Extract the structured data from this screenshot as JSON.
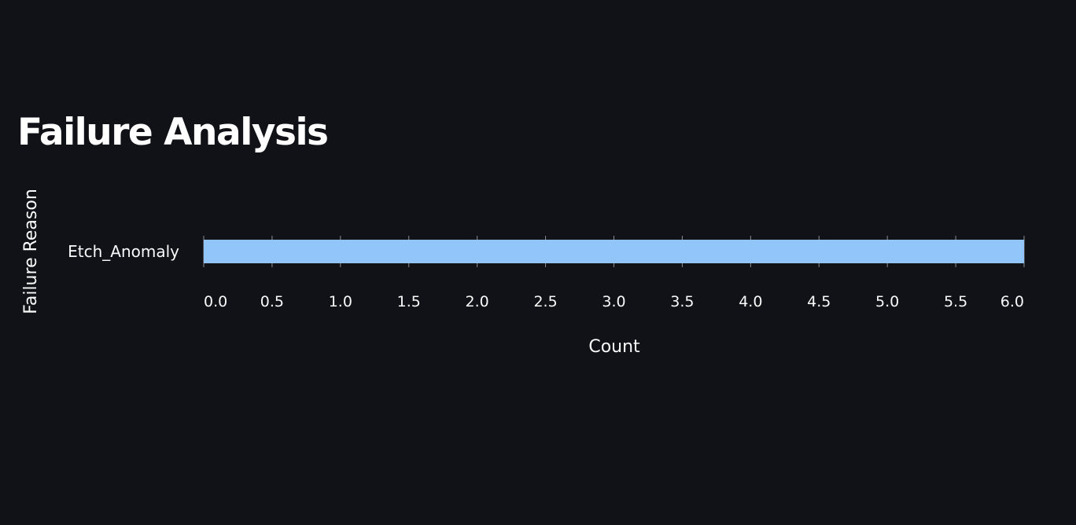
{
  "page": {
    "title": "Failure Analysis"
  },
  "colors": {
    "background": "#111217",
    "bar": "#92c5f9",
    "axis": "#8a8d96",
    "text": "#fafafa"
  },
  "chart_data": {
    "type": "bar",
    "orientation": "horizontal",
    "categories": [
      "Etch_Anomaly"
    ],
    "values": [
      6
    ],
    "xlabel": "Count",
    "ylabel": "Failure Reason",
    "xlim": [
      0,
      6
    ],
    "xticks": [
      "0.0",
      "0.5",
      "1.0",
      "1.5",
      "2.0",
      "2.5",
      "3.0",
      "3.5",
      "4.0",
      "4.5",
      "5.0",
      "5.5",
      "6.0"
    ],
    "grid": false,
    "legend": "none"
  }
}
